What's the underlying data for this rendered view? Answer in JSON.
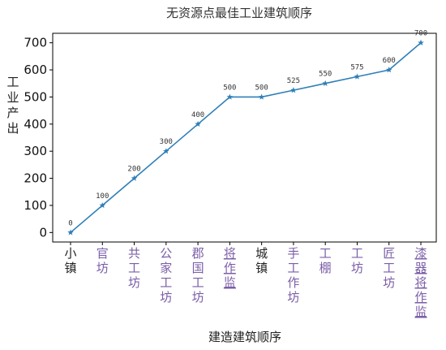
{
  "chart_data": {
    "type": "line",
    "title": "无资源点最佳工业建筑顺序",
    "xlabel": "建造建筑顺序",
    "ylabel": "工业产出",
    "categories": [
      "小镇",
      "官坊",
      "共工坊",
      "公家工坊",
      "郡国工坊",
      "将作监",
      "城镇",
      "手工作坊",
      "工棚",
      "工坊",
      "匠工坊",
      "漆器将作监"
    ],
    "category_colors": [
      "#222222",
      "#7b5ea7",
      "#7b5ea7",
      "#7b5ea7",
      "#7b5ea7",
      "#7b5ea7",
      "#222222",
      "#7b5ea7",
      "#7b5ea7",
      "#7b5ea7",
      "#7b5ea7",
      "#7b5ea7"
    ],
    "underlined": [
      false,
      false,
      false,
      false,
      false,
      true,
      false,
      false,
      false,
      false,
      false,
      true
    ],
    "values": [
      0,
      100,
      200,
      300,
      400,
      500,
      500,
      525,
      550,
      575,
      600,
      700
    ],
    "data_labels": [
      "0",
      "100",
      "200",
      "300",
      "400",
      "500",
      "500",
      "525",
      "550",
      "575",
      "600",
      "700"
    ],
    "yticks": [
      0,
      100,
      200,
      300,
      400,
      500,
      600,
      700
    ],
    "ylim": [
      -35,
      735
    ],
    "line_color": "#2e7fb8",
    "marker": "star",
    "grid": false,
    "legend": "none"
  }
}
